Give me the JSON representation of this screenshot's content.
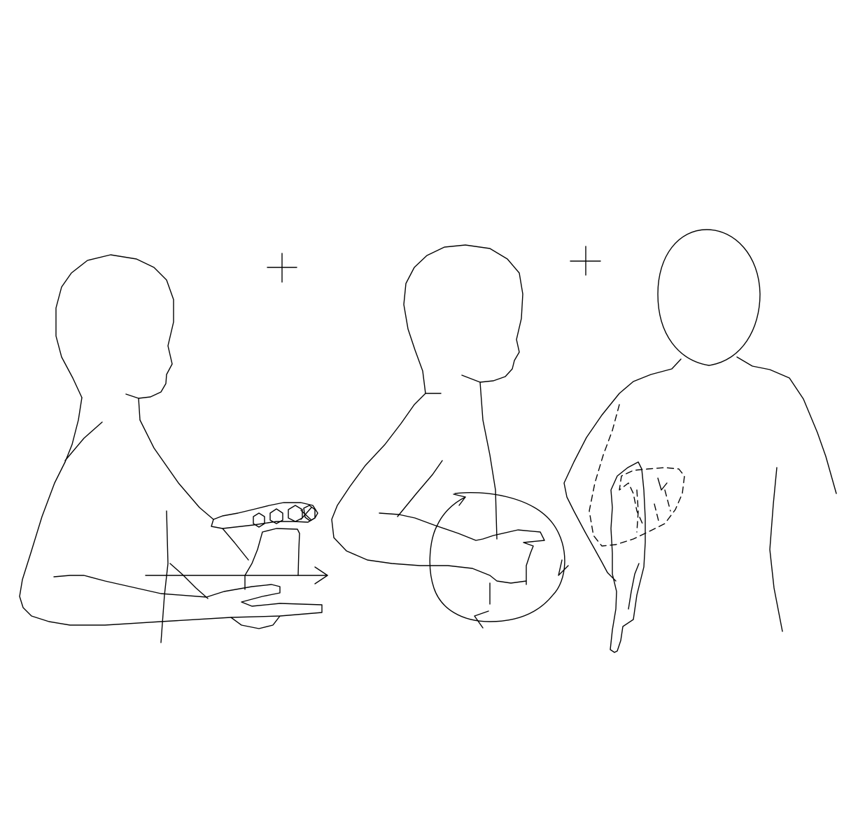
{
  "colors": {
    "stroke": "#000000",
    "background": "#ffffff"
  },
  "figures": [
    {
      "id": "panel-1",
      "subject": "person-side-view",
      "motion_icon": "arrow-right-icon",
      "marker_icon": "plus-marker-icon"
    },
    {
      "id": "panel-2",
      "subject": "person-side-view",
      "motion_icon": "circular-arrow-icon"
    },
    {
      "id": "panel-3",
      "subject": "person-front-view",
      "motion_icon": "dashed-circular-motion-icon",
      "marker_icon": "plus-marker-icon"
    }
  ]
}
